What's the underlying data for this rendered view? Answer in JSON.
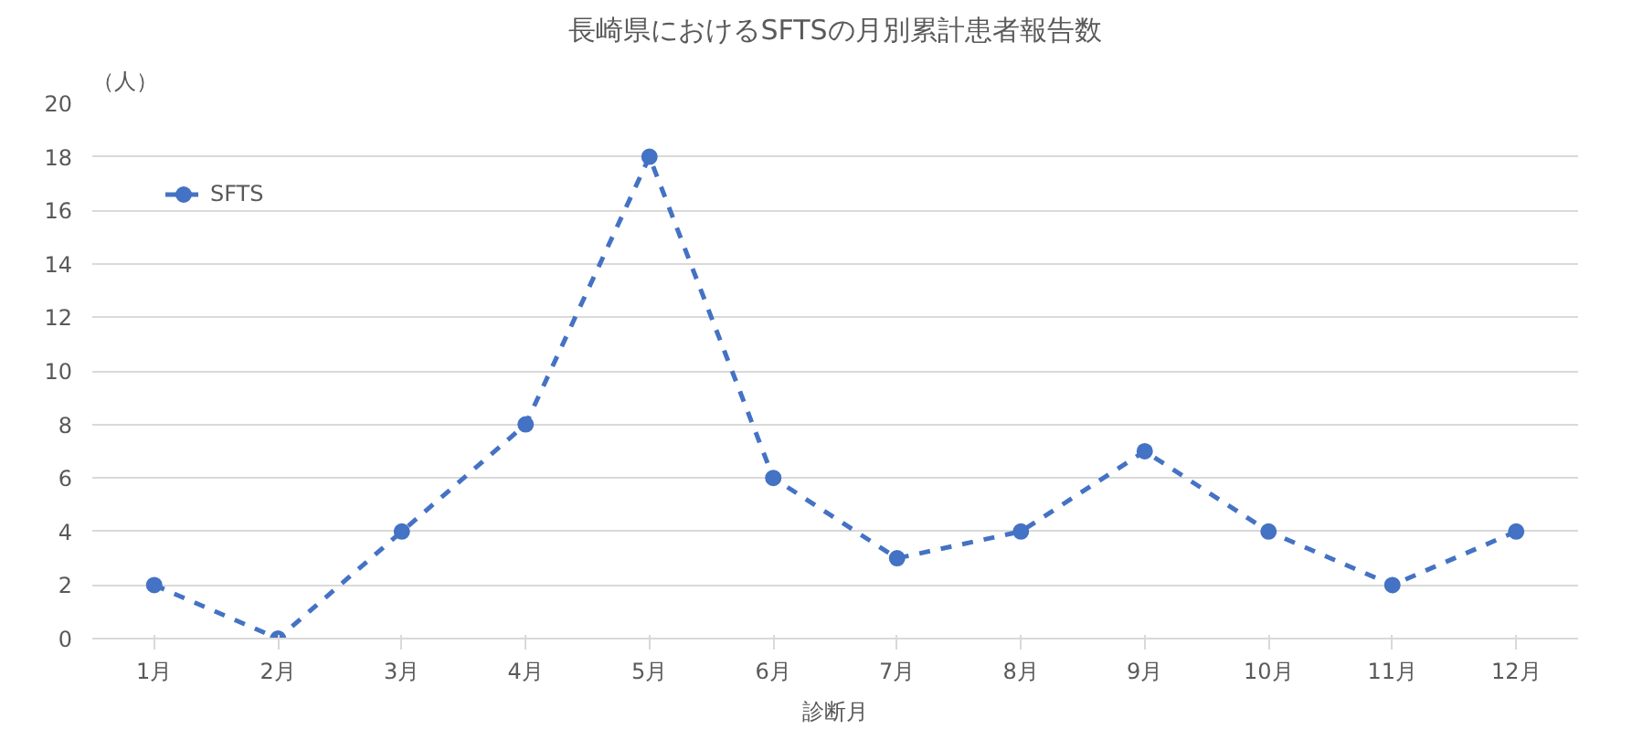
{
  "chart_data": {
    "type": "line",
    "title": "長崎県におけるSFTSの月別累計患者報告数",
    "ylabel": "（人）",
    "xlabel": "診断月",
    "categories": [
      "1月",
      "2月",
      "3月",
      "4月",
      "5月",
      "6月",
      "7月",
      "8月",
      "9月",
      "10月",
      "11月",
      "12月"
    ],
    "series": [
      {
        "name": "SFTS",
        "color": "#4472c4",
        "values": [
          2,
          0,
          4,
          8,
          18,
          6,
          3,
          4,
          7,
          4,
          2,
          4
        ]
      }
    ],
    "ylim": [
      0,
      20
    ],
    "yticks": [
      0,
      2,
      4,
      6,
      8,
      10,
      12,
      14,
      16,
      18,
      20
    ],
    "grid": "y",
    "legend": "top left",
    "marker": "circle",
    "line_style": "dashed"
  }
}
